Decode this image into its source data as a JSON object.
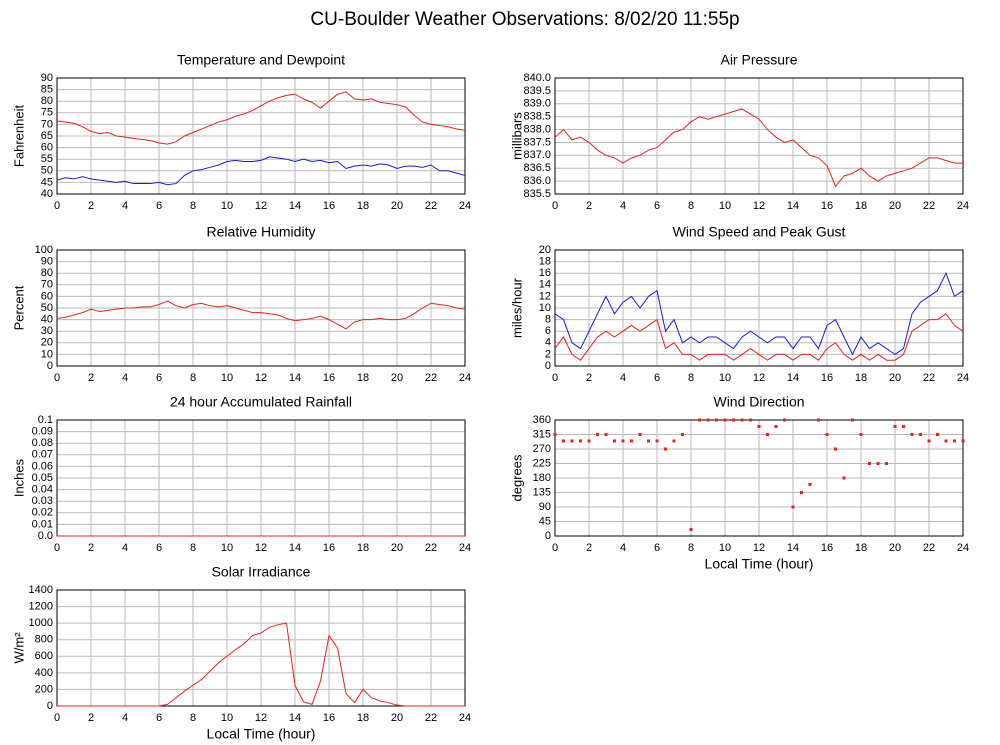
{
  "title": "CU-Boulder Weather Observations: 8/02/20 11:55p",
  "chart_data": [
    {
      "type": "line",
      "title": "Temperature and Dewpoint",
      "y_label": "Fahrenheit",
      "x": [
        0,
        0.5,
        1,
        1.5,
        2,
        2.5,
        3,
        3.5,
        4,
        4.5,
        5,
        5.5,
        6,
        6.5,
        7,
        7.5,
        8,
        8.5,
        9,
        9.5,
        10,
        10.5,
        11,
        11.5,
        12,
        12.5,
        13,
        13.5,
        14,
        14.5,
        15,
        15.5,
        16,
        16.5,
        17,
        17.5,
        18,
        18.5,
        19,
        19.5,
        20,
        20.5,
        21,
        21.5,
        22,
        22.5,
        23,
        23.5,
        24
      ],
      "series": [
        {
          "color": "#e8211e",
          "values": [
            71.5,
            71,
            70.5,
            69,
            67,
            66,
            66.5,
            65,
            64.5,
            64,
            63.5,
            63,
            62,
            61.5,
            62.5,
            65,
            66.5,
            68,
            69.5,
            71,
            72,
            73.5,
            74.5,
            76,
            78,
            80,
            81.5,
            82.5,
            83,
            81,
            79.5,
            77,
            80,
            83,
            84,
            81,
            80.5,
            81,
            79.5,
            79,
            78.5,
            77.5,
            74,
            71,
            70,
            69.5,
            69,
            68,
            67.5
          ]
        },
        {
          "color": "#1a1adb",
          "values": [
            46,
            47,
            46.5,
            47.5,
            46.5,
            46,
            45.5,
            45,
            45.5,
            44.5,
            44.5,
            44.5,
            45,
            44,
            44.5,
            48,
            50,
            50.5,
            51.5,
            52.5,
            54,
            54.5,
            54,
            54,
            54.5,
            56,
            55.5,
            55,
            54,
            55,
            54,
            54.5,
            53.5,
            54,
            51,
            52,
            52.5,
            52,
            53,
            52.5,
            51,
            52,
            52,
            51.5,
            52.5,
            50,
            50,
            49,
            48
          ]
        }
      ],
      "xlim": [
        0,
        24
      ],
      "xticks": [
        0,
        2,
        4,
        6,
        8,
        10,
        12,
        14,
        16,
        18,
        20,
        22,
        24
      ],
      "ylim": [
        40,
        90
      ],
      "yticks": [
        40,
        45,
        50,
        55,
        60,
        65,
        70,
        75,
        80,
        85,
        90
      ],
      "grid": true
    },
    {
      "type": "line",
      "title": "Air Pressure",
      "y_label": "millibars",
      "x": [
        0,
        0.5,
        1,
        1.5,
        2,
        2.5,
        3,
        3.5,
        4,
        4.5,
        5,
        5.5,
        6,
        6.5,
        7,
        7.5,
        8,
        8.5,
        9,
        9.5,
        10,
        10.5,
        11,
        11.5,
        12,
        12.5,
        13,
        13.5,
        14,
        14.5,
        15,
        15.5,
        16,
        16.5,
        17,
        17.5,
        18,
        18.5,
        19,
        19.5,
        20,
        20.5,
        21,
        21.5,
        22,
        22.5,
        23,
        23.5,
        24
      ],
      "series": [
        {
          "color": "#e8211e",
          "values": [
            837.7,
            838.0,
            837.6,
            837.7,
            837.5,
            837.2,
            837.0,
            836.9,
            836.7,
            836.9,
            837.0,
            837.2,
            837.3,
            837.6,
            837.9,
            838.0,
            838.3,
            838.5,
            838.4,
            838.5,
            838.6,
            838.7,
            838.8,
            838.6,
            838.4,
            838.0,
            837.7,
            837.5,
            837.6,
            837.3,
            837.0,
            836.9,
            836.6,
            835.8,
            836.2,
            836.3,
            836.5,
            836.2,
            836.0,
            836.2,
            836.3,
            836.4,
            836.5,
            836.7,
            836.9,
            836.9,
            836.8,
            836.7,
            836.7
          ]
        }
      ],
      "xlim": [
        0,
        24
      ],
      "xticks": [
        0,
        2,
        4,
        6,
        8,
        10,
        12,
        14,
        16,
        18,
        20,
        22,
        24
      ],
      "ylim": [
        835.5,
        840
      ],
      "yticks": [
        835.5,
        {
          "value": 836,
          "label": "836.0"
        },
        836.5,
        {
          "value": 837,
          "label": "837.0"
        },
        837.5,
        {
          "value": 838,
          "label": "838.0"
        },
        838.5,
        {
          "value": 839,
          "label": "839.0"
        },
        839.5,
        {
          "value": 840,
          "label": "840.0"
        }
      ],
      "grid": true
    },
    {
      "type": "line",
      "title": "Relative Humidity",
      "y_label": "Percent",
      "x": [
        0,
        0.5,
        1,
        1.5,
        2,
        2.5,
        3,
        3.5,
        4,
        4.5,
        5,
        5.5,
        6,
        6.5,
        7,
        7.5,
        8,
        8.5,
        9,
        9.5,
        10,
        10.5,
        11,
        11.5,
        12,
        12.5,
        13,
        13.5,
        14,
        14.5,
        15,
        15.5,
        16,
        16.5,
        17,
        17.5,
        18,
        18.5,
        19,
        19.5,
        20,
        20.5,
        21,
        21.5,
        22,
        22.5,
        23,
        23.5,
        24
      ],
      "series": [
        {
          "color": "#e8211e",
          "values": [
            41,
            42,
            44,
            46,
            49,
            47,
            48,
            49,
            50,
            50,
            51,
            51,
            53,
            56,
            52,
            50,
            53,
            54,
            52,
            51,
            52,
            50,
            48,
            46,
            46,
            45,
            44,
            41,
            39,
            40,
            41,
            43,
            40,
            36,
            32,
            38,
            40,
            40,
            41,
            40,
            40,
            41,
            45,
            50,
            54,
            53,
            52,
            50,
            49
          ]
        }
      ],
      "xlim": [
        0,
        24
      ],
      "xticks": [
        0,
        2,
        4,
        6,
        8,
        10,
        12,
        14,
        16,
        18,
        20,
        22,
        24
      ],
      "ylim": [
        0,
        100
      ],
      "yticks": [
        0,
        10,
        20,
        30,
        40,
        50,
        60,
        70,
        80,
        90,
        100
      ],
      "grid": true
    },
    {
      "type": "line",
      "title": "Wind Speed and Peak Gust",
      "y_label": "miles/hour",
      "x": [
        0,
        0.5,
        1,
        1.5,
        2,
        2.5,
        3,
        3.5,
        4,
        4.5,
        5,
        5.5,
        6,
        6.5,
        7,
        7.5,
        8,
        8.5,
        9,
        9.5,
        10,
        10.5,
        11,
        11.5,
        12,
        12.5,
        13,
        13.5,
        14,
        14.5,
        15,
        15.5,
        16,
        16.5,
        17,
        17.5,
        18,
        18.5,
        19,
        19.5,
        20,
        20.5,
        21,
        21.5,
        22,
        22.5,
        23,
        23.5,
        24
      ],
      "series": [
        {
          "color": "#1a1adb",
          "values": [
            9,
            8,
            4,
            3,
            6,
            9,
            12,
            9,
            11,
            12,
            10,
            12,
            13,
            6,
            8,
            4,
            5,
            4,
            5,
            5,
            4,
            3,
            5,
            6,
            5,
            4,
            5,
            5,
            3,
            5,
            5,
            3,
            7,
            8,
            5,
            2,
            5,
            3,
            4,
            3,
            2,
            3,
            9,
            11,
            12,
            13,
            16,
            12,
            13
          ]
        },
        {
          "color": "#e8211e",
          "values": [
            3,
            5,
            2,
            1,
            3,
            5,
            6,
            5,
            6,
            7,
            6,
            7,
            8,
            3,
            4,
            2,
            2,
            1,
            2,
            2,
            2,
            1,
            2,
            3,
            2,
            1,
            2,
            2,
            1,
            2,
            2,
            1,
            3,
            4,
            2,
            1,
            2,
            1,
            2,
            1,
            1,
            2,
            6,
            7,
            8,
            8,
            9,
            7,
            6
          ]
        }
      ],
      "xlim": [
        0,
        24
      ],
      "xticks": [
        0,
        2,
        4,
        6,
        8,
        10,
        12,
        14,
        16,
        18,
        20,
        22,
        24
      ],
      "ylim": [
        0,
        20
      ],
      "yticks": [
        0,
        2,
        4,
        6,
        8,
        10,
        12,
        14,
        16,
        18,
        20
      ],
      "grid": true
    },
    {
      "type": "line",
      "title": "24 hour Accumulated Rainfall",
      "y_label": "Inches",
      "x": [
        0,
        24
      ],
      "series": [
        {
          "color": "#e8211e",
          "values": [
            0,
            0
          ]
        }
      ],
      "xlim": [
        0,
        24
      ],
      "xticks": [
        0,
        2,
        4,
        6,
        8,
        10,
        12,
        14,
        16,
        18,
        20,
        22,
        24
      ],
      "ylim": [
        0,
        0.1
      ],
      "yticks": [
        {
          "value": 0,
          "label": "0.0"
        },
        0.01,
        0.02,
        0.03,
        0.04,
        0.05,
        0.06,
        0.07,
        0.08,
        0.09,
        0.1
      ],
      "grid": true
    },
    {
      "type": "scatter",
      "title": "Wind Direction",
      "y_label": "degrees",
      "x_label": "Local Time (hour)",
      "x": [
        0,
        0.5,
        1,
        1.5,
        2,
        2.5,
        3,
        3.5,
        4,
        4.5,
        5,
        5.5,
        6,
        6.5,
        7,
        7.5,
        8,
        8.5,
        9,
        9.5,
        10,
        10.5,
        11,
        11.5,
        12,
        12.5,
        13,
        13.5,
        14,
        14.5,
        15,
        15.5,
        16,
        16.5,
        17,
        17.5,
        18,
        18.5,
        19,
        19.5,
        20,
        20.5,
        21,
        21.5,
        22,
        22.5,
        23,
        23.5,
        24
      ],
      "series": [
        {
          "color": "#e8211e",
          "values": [
            315,
            295,
            295,
            295,
            295,
            315,
            315,
            295,
            295,
            295,
            315,
            295,
            295,
            270,
            295,
            315,
            20,
            360,
            360,
            360,
            360,
            360,
            360,
            360,
            340,
            315,
            340,
            360,
            90,
            135,
            160,
            360,
            315,
            270,
            180,
            360,
            315,
            225,
            225,
            225,
            340,
            340,
            315,
            315,
            295,
            315,
            295,
            295,
            295
          ]
        }
      ],
      "xlim": [
        0,
        24
      ],
      "xticks": [
        0,
        2,
        4,
        6,
        8,
        10,
        12,
        14,
        16,
        18,
        20,
        22,
        24
      ],
      "ylim": [
        0,
        360
      ],
      "yticks": [
        0,
        45,
        90,
        135,
        180,
        225,
        270,
        315,
        360
      ],
      "grid": true
    },
    {
      "type": "line",
      "title": "Solar Irradiance",
      "y_label": "W/m²",
      "x_label": "Local Time (hour)",
      "x": [
        0,
        0.5,
        1,
        1.5,
        2,
        2.5,
        3,
        3.5,
        4,
        4.5,
        5,
        5.5,
        6,
        6.5,
        7,
        7.5,
        8,
        8.5,
        9,
        9.5,
        10,
        10.5,
        11,
        11.5,
        12,
        12.5,
        13,
        13.5,
        14,
        14.5,
        15,
        15.5,
        16,
        16.5,
        17,
        17.5,
        18,
        18.5,
        19,
        19.5,
        20,
        20.5,
        21,
        21.5,
        22,
        22.5,
        23,
        23.5,
        24
      ],
      "series": [
        {
          "color": "#e8211e",
          "values": [
            0,
            0,
            0,
            0,
            0,
            0,
            0,
            0,
            0,
            0,
            0,
            0,
            0,
            20,
            100,
            180,
            250,
            320,
            420,
            520,
            600,
            680,
            750,
            850,
            880,
            950,
            980,
            1000,
            250,
            50,
            20,
            300,
            850,
            700,
            150,
            40,
            200,
            100,
            60,
            40,
            10,
            0,
            0,
            0,
            0,
            0,
            0,
            0,
            0
          ]
        }
      ],
      "xlim": [
        0,
        24
      ],
      "xticks": [
        0,
        2,
        4,
        6,
        8,
        10,
        12,
        14,
        16,
        18,
        20,
        22,
        24
      ],
      "ylim": [
        0,
        1400
      ],
      "yticks": [
        0,
        200,
        400,
        600,
        800,
        1000,
        1200,
        1400
      ],
      "grid": true
    }
  ]
}
